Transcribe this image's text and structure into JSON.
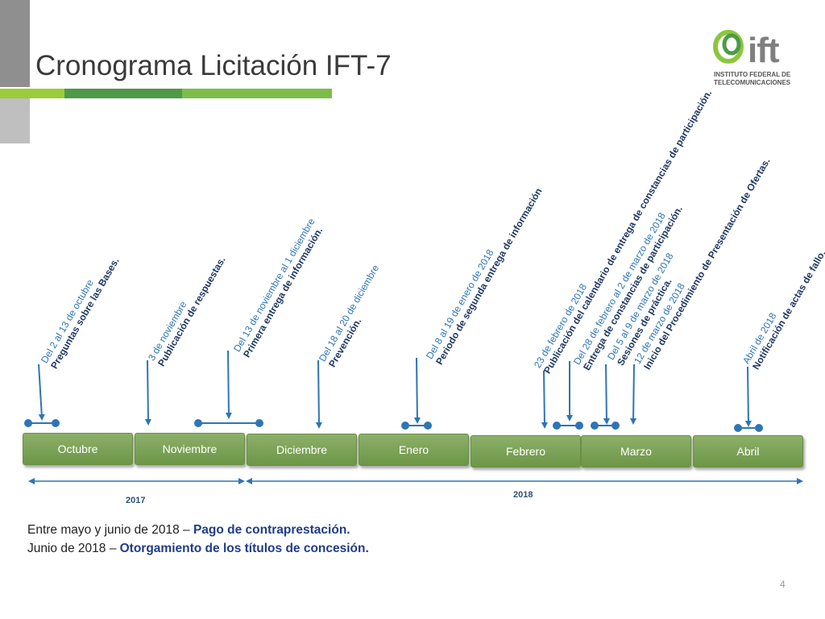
{
  "header": {
    "title": "Cronograma Licitación IFT-7"
  },
  "logo": {
    "name": "ift",
    "line1": "INSTITUTO FEDERAL DE",
    "line2": "TELECOMUNICACIONES"
  },
  "months": [
    "Octubre",
    "Noviembre",
    "Diciembre",
    "Enero",
    "Febrero",
    "Marzo",
    "Abril"
  ],
  "years": {
    "y2017": "2017",
    "y2018": "2018"
  },
  "events": [
    {
      "date": "Del 2 al 13 de octubre",
      "desc": "Preguntas sobre las Bases."
    },
    {
      "date": "3 de noviembre",
      "desc": "Publicación de respuestas."
    },
    {
      "date": "Del 13 de noviembre al 1 diciembre",
      "desc": "Primera entrega de información."
    },
    {
      "date": "Del 18 al 20 de diciembre",
      "desc": "Prevención."
    },
    {
      "date": "Del 8 al 19 de enero de 2018",
      "desc": "Periodo de segunda entrega de información"
    },
    {
      "date": "23 de febrero de 2018",
      "desc": "Publicación del calendario de entrega de  constancias de participación."
    },
    {
      "date": "Del 28 de febrero al 2 de marzo de 2018",
      "desc": "Entrega de constancias de participación."
    },
    {
      "date": "Del 5 al 9 de marzo de 2018",
      "desc": "Sesiones de práctica."
    },
    {
      "date": "12 de marzo de 2018",
      "desc": "Inicio del Procedimiento de Presentación de Ofertas."
    },
    {
      "date": "Abril de 2018",
      "desc": "Notificación de actas de fallo."
    }
  ],
  "notes": [
    {
      "prefix": "Entre mayo y junio de 2018 – ",
      "bold": "Pago de contraprestación."
    },
    {
      "prefix": "Junio de 2018 – ",
      "bold": "Otorgamiento de los títulos de concesión."
    }
  ],
  "page_number": "4",
  "colors": {
    "bar1": "#9acd3a",
    "bar2": "#4e9a48",
    "bar3": "#7cbd4a",
    "month_box": "#789f50",
    "timeline": "#2e75b6",
    "date_text": "#2e75b6",
    "desc_text": "#1f3864"
  }
}
